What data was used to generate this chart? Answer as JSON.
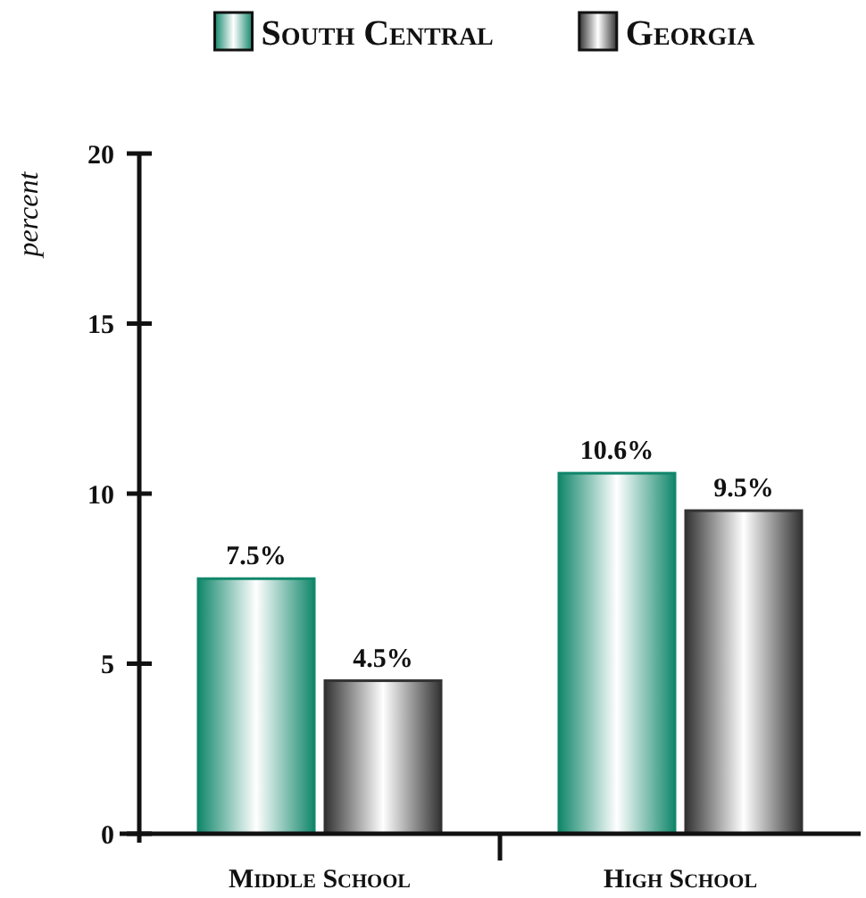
{
  "chart_data": {
    "type": "bar",
    "ylabel": "percent",
    "categories": [
      "Middle School",
      "High School"
    ],
    "series": [
      {
        "name": "South Central",
        "color": "#11876b",
        "values": [
          7.5,
          10.6
        ],
        "value_labels": [
          "7.5%",
          "10.6%"
        ]
      },
      {
        "name": "Georgia",
        "color": "#333333",
        "values": [
          4.5,
          9.5
        ],
        "value_labels": [
          "4.5%",
          "9.5%"
        ]
      }
    ],
    "ylim": [
      0,
      20
    ],
    "yticks": [
      0,
      5,
      10,
      15,
      20
    ],
    "grid": false,
    "legend": "top"
  }
}
